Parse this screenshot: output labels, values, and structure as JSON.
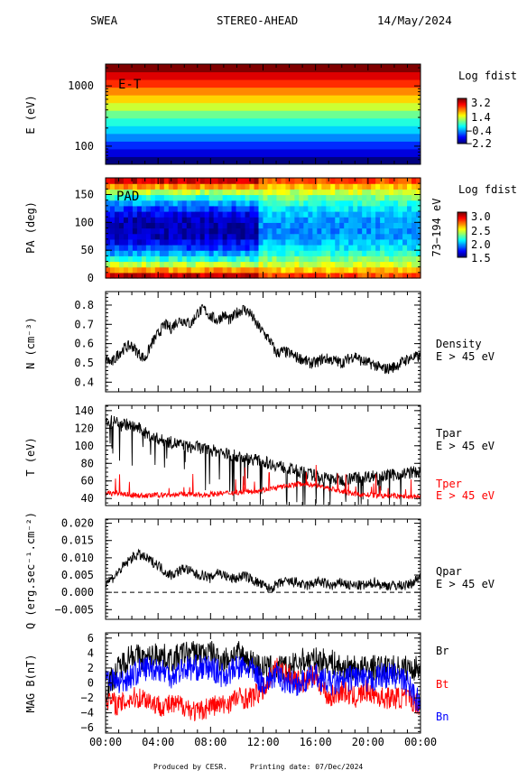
{
  "header": {
    "instrument": "SWEA",
    "spacecraft": "STEREO-AHEAD",
    "date": "14/May/2024"
  },
  "footer": {
    "produced": "Produced by CESR.",
    "printing": "Printing date: 07/Dec/2024"
  },
  "colors": {
    "black": "#000000",
    "red": "#ff0000",
    "blue": "#0000ff"
  },
  "chart_data": [
    {
      "id": "energy_time",
      "type": "heatmap",
      "label": "E-T",
      "ylabel": "E (eV)",
      "y_scale": "log",
      "ylim": [
        50,
        2300
      ],
      "ytick_labels": [
        "100",
        "1000"
      ],
      "yticks": [
        100,
        1000
      ],
      "bands": [
        {
          "level": -2.2
        },
        {
          "level": -1.7
        },
        {
          "level": -1.3
        },
        {
          "level": -0.8
        },
        {
          "level": -0.4
        },
        {
          "level": 0.0
        },
        {
          "level": 0.4
        },
        {
          "level": 0.9
        },
        {
          "level": 1.4
        },
        {
          "level": 1.8
        },
        {
          "level": 2.3
        },
        {
          "level": 2.7
        },
        {
          "level": 3.2
        }
      ],
      "colorbar": {
        "title": "Log fdist",
        "ticks": [
          "3.2",
          "1.4",
          "−0.4",
          "−2.2"
        ],
        "range": [
          -2.2,
          3.2
        ]
      }
    },
    {
      "id": "pad",
      "type": "heatmap",
      "label": "PAD",
      "ylabel": "PA (deg)",
      "ylim": [
        0,
        180
      ],
      "ytick_labels": [
        "0",
        "50",
        "100",
        "150"
      ],
      "yticks": [
        0,
        50,
        100,
        150
      ],
      "right_label": "73−194 eV",
      "colorbar": {
        "title": "Log fdist",
        "ticks": [
          "3.0",
          "2.5",
          "2.0",
          "1.5"
        ],
        "range": [
          1.5,
          3.0
        ]
      }
    },
    {
      "id": "density",
      "type": "line",
      "ylabel": "N (cm⁻³)",
      "ylim": [
        0.35,
        0.87
      ],
      "ytick_labels": [
        "0.4",
        "0.5",
        "0.6",
        "0.7",
        "0.8"
      ],
      "yticks": [
        0.4,
        0.5,
        0.6,
        0.7,
        0.8
      ],
      "series": [
        {
          "name": "Density",
          "sub": "E > 45 eV",
          "color": "#000000",
          "x": [
            0,
            0.5,
            1,
            1.5,
            2,
            2.5,
            3,
            3.5,
            4,
            4.5,
            5,
            5.5,
            6,
            6.5,
            7,
            7.5,
            8,
            8.5,
            9,
            9.5,
            10,
            10.5,
            11,
            11.5,
            12,
            12.5,
            13,
            13.5,
            14,
            14.5,
            15,
            15.5,
            16,
            16.5,
            17,
            17.5,
            18,
            18.5,
            19,
            19.5,
            20,
            20.5,
            21,
            21.5,
            22,
            22.5,
            23,
            23.5,
            24
          ],
          "y": [
            0.52,
            0.5,
            0.55,
            0.58,
            0.59,
            0.55,
            0.52,
            0.6,
            0.65,
            0.7,
            0.68,
            0.72,
            0.72,
            0.7,
            0.76,
            0.78,
            0.74,
            0.72,
            0.75,
            0.72,
            0.76,
            0.78,
            0.76,
            0.7,
            0.66,
            0.62,
            0.55,
            0.56,
            0.55,
            0.53,
            0.52,
            0.5,
            0.5,
            0.52,
            0.52,
            0.51,
            0.5,
            0.52,
            0.54,
            0.51,
            0.5,
            0.49,
            0.47,
            0.47,
            0.48,
            0.5,
            0.52,
            0.53,
            0.53
          ]
        }
      ]
    },
    {
      "id": "temperature",
      "type": "line",
      "ylabel": "T (eV)",
      "ylim": [
        32,
        146
      ],
      "ytick_labels": [
        "40",
        "60",
        "80",
        "100",
        "120",
        "140"
      ],
      "yticks": [
        40,
        60,
        80,
        100,
        120,
        140
      ],
      "series": [
        {
          "name": "Tpar",
          "sub": "E > 45 eV",
          "color": "#000000",
          "x": [
            0,
            0.5,
            1,
            1.5,
            2,
            2.5,
            3,
            3.5,
            4,
            4.5,
            5,
            5.5,
            6,
            6.5,
            7,
            7.5,
            8,
            8.5,
            9,
            9.5,
            10,
            10.5,
            11,
            11.5,
            12,
            12.5,
            13,
            13.5,
            14,
            14.5,
            15,
            15.5,
            16,
            16.5,
            17,
            17.5,
            18,
            18.5,
            19,
            19.5,
            20,
            20.5,
            21,
            21.5,
            22,
            22.5,
            23,
            23.5,
            24
          ],
          "y": [
            128,
            128,
            127,
            125,
            122,
            120,
            115,
            110,
            108,
            105,
            104,
            102,
            100,
            98,
            99,
            96,
            95,
            94,
            92,
            90,
            88,
            86,
            85,
            84,
            82,
            80,
            78,
            76,
            74,
            72,
            70,
            68,
            66,
            64,
            63,
            62,
            61,
            62,
            64,
            65,
            65,
            66,
            67,
            66,
            67,
            68,
            69,
            70,
            70
          ]
        },
        {
          "name": "Tper",
          "sub": "E > 45 eV",
          "color": "#ff0000",
          "x": [
            0,
            1,
            2,
            3,
            4,
            5,
            6,
            7,
            8,
            9,
            10,
            11,
            12,
            13,
            14,
            15,
            16,
            17,
            18,
            19,
            20,
            21,
            22,
            23,
            24
          ],
          "y": [
            46,
            46,
            44,
            43,
            44,
            44,
            45,
            44,
            45,
            46,
            47,
            48,
            50,
            52,
            55,
            57,
            55,
            52,
            48,
            45,
            44,
            43,
            43,
            42,
            42
          ]
        }
      ]
    },
    {
      "id": "heat_flux",
      "type": "line",
      "ylabel": "Q (erg.sec⁻¹.cm⁻²)",
      "ylim": [
        -0.0078,
        0.0212
      ],
      "ytick_labels": [
        "−0.005",
        "0.000",
        "0.005",
        "0.010",
        "0.015",
        "0.020"
      ],
      "yticks": [
        -0.005,
        0.0,
        0.005,
        0.01,
        0.015,
        0.02
      ],
      "zero_line": true,
      "series": [
        {
          "name": "Qpar",
          "sub": "E > 45 eV",
          "color": "#000000",
          "x": [
            0,
            0.5,
            1,
            1.5,
            2,
            2.5,
            3,
            3.5,
            4,
            4.5,
            5,
            5.5,
            6,
            6.5,
            7,
            7.5,
            8,
            8.5,
            9,
            9.5,
            10,
            10.5,
            11,
            11.5,
            12,
            12.5,
            13,
            13.5,
            14,
            14.5,
            15,
            15.5,
            16,
            16.5,
            17,
            17.5,
            18,
            18.5,
            19,
            19.5,
            20,
            20.5,
            21,
            21.5,
            22,
            22.5,
            23,
            23.5,
            24
          ],
          "y": [
            0.003,
            0.004,
            0.006,
            0.008,
            0.01,
            0.011,
            0.01,
            0.009,
            0.008,
            0.006,
            0.005,
            0.006,
            0.007,
            0.006,
            0.005,
            0.005,
            0.004,
            0.006,
            0.005,
            0.004,
            0.004,
            0.005,
            0.004,
            0.003,
            0.002,
            0.001,
            0.002,
            0.003,
            0.003,
            0.003,
            0.002,
            0.002,
            0.003,
            0.003,
            0.002,
            0.002,
            0.003,
            0.002,
            0.002,
            0.002,
            0.002,
            0.003,
            0.002,
            0.002,
            0.002,
            0.002,
            0.002,
            0.003,
            0.005
          ]
        }
      ]
    },
    {
      "id": "magnetic_field",
      "type": "line",
      "ylabel": "MAG B(nT)",
      "ylim": [
        -6.7,
        6.7
      ],
      "ytick_labels": [
        "−6",
        "−4",
        "−2",
        "0",
        "2",
        "4",
        "6"
      ],
      "yticks": [
        -6,
        -4,
        -2,
        0,
        2,
        4,
        6
      ],
      "series": [
        {
          "name": "Br",
          "color": "#000000",
          "x": [
            0,
            1,
            2,
            3,
            4,
            5,
            6,
            7,
            8,
            9,
            10,
            11,
            12,
            13,
            14,
            15,
            16,
            17,
            18,
            19,
            20,
            21,
            22,
            23,
            24
          ],
          "y": [
            -1,
            2,
            4,
            3,
            4,
            3,
            4,
            4,
            4,
            3,
            4,
            3,
            2,
            2,
            2,
            3,
            3,
            3,
            2,
            2,
            2,
            2,
            2,
            2,
            2
          ]
        },
        {
          "name": "Bt",
          "color": "#ff0000",
          "x": [
            0,
            1,
            2,
            3,
            4,
            5,
            6,
            7,
            8,
            9,
            10,
            11,
            12,
            13,
            14,
            15,
            16,
            17,
            18,
            19,
            20,
            21,
            22,
            23,
            24
          ],
          "y": [
            -2,
            -3,
            -2,
            -2,
            -3,
            -3,
            -3,
            -4,
            -3,
            -3,
            -2,
            -2,
            -1,
            2,
            1,
            0,
            1,
            -2,
            -1,
            -2,
            -1,
            -2,
            -2,
            -2,
            -3
          ]
        },
        {
          "name": "Bn",
          "color": "#0000ff",
          "x": [
            0,
            1,
            2,
            3,
            4,
            5,
            6,
            7,
            8,
            9,
            10,
            11,
            12,
            13,
            14,
            15,
            16,
            17,
            18,
            19,
            20,
            21,
            22,
            23,
            24
          ],
          "y": [
            1,
            0,
            1,
            2,
            2,
            1,
            2,
            2,
            2,
            1,
            2,
            2,
            0,
            1,
            0,
            0,
            1,
            0,
            0,
            1,
            0,
            1,
            1,
            0,
            -3
          ]
        }
      ]
    }
  ],
  "x_axis": {
    "xlim": [
      0,
      24
    ],
    "tick_values": [
      0,
      4,
      8,
      12,
      16,
      20,
      24
    ],
    "tick_labels": [
      "00:00",
      "04:00",
      "08:00",
      "12:00",
      "16:00",
      "20:00",
      "00:00"
    ]
  }
}
